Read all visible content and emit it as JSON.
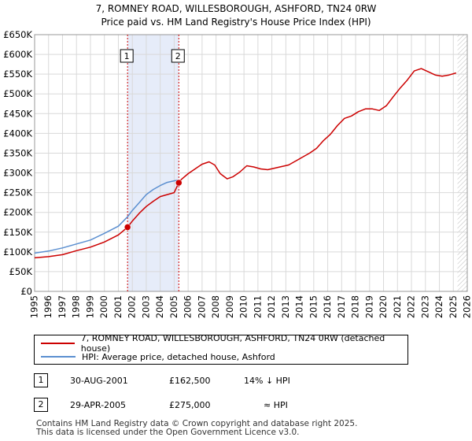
{
  "chart_data": {
    "type": "line",
    "title": "7, ROMNEY ROAD, WILLESBOROUGH, ASHFORD, TN24 0RW",
    "subtitle": "Price paid vs. HM Land Registry's House Price Index (HPI)",
    "xlabel": "",
    "ylabel": "",
    "xlim": [
      1995,
      2026
    ],
    "ylim": [
      0,
      650000
    ],
    "y_ticks": [
      0,
      50000,
      100000,
      150000,
      200000,
      250000,
      300000,
      350000,
      400000,
      450000,
      500000,
      550000,
      600000,
      650000
    ],
    "y_tick_labels": [
      "£0",
      "£50K",
      "£100K",
      "£150K",
      "£200K",
      "£250K",
      "£300K",
      "£350K",
      "£400K",
      "£450K",
      "£500K",
      "£550K",
      "£600K",
      "£650K"
    ],
    "x_ticks": [
      1995,
      1996,
      1997,
      1998,
      1999,
      2000,
      2001,
      2002,
      2003,
      2004,
      2005,
      2006,
      2007,
      2008,
      2009,
      2010,
      2011,
      2012,
      2013,
      2014,
      2015,
      2016,
      2017,
      2018,
      2019,
      2020,
      2021,
      2022,
      2023,
      2024,
      2025,
      2026
    ],
    "grid": true,
    "shaded_region": [
      2001.66,
      2005.33
    ],
    "forecast_start": 2025.3,
    "series": [
      {
        "name": "7, ROMNEY ROAD, WILLESBOROUGH, ASHFORD, TN24 0RW (detached house)",
        "color": "#cc0000",
        "x": [
          1995.0,
          1996.0,
          1997.0,
          1998.0,
          1999.0,
          2000.0,
          2001.0,
          2001.66,
          2002.0,
          2002.5,
          2003.0,
          2003.5,
          2004.0,
          2004.5,
          2005.0,
          2005.33,
          2005.5,
          2006.0,
          2006.5,
          2007.0,
          2007.5,
          2007.9,
          2008.3,
          2008.8,
          2009.2,
          2009.7,
          2010.2,
          2010.7,
          2011.2,
          2011.7,
          2012.2,
          2012.7,
          2013.2,
          2013.7,
          2014.2,
          2014.7,
          2015.2,
          2015.7,
          2016.2,
          2016.7,
          2017.2,
          2017.7,
          2018.2,
          2018.7,
          2019.2,
          2019.7,
          2020.2,
          2020.7,
          2021.2,
          2021.7,
          2022.2,
          2022.7,
          2023.2,
          2023.7,
          2024.2,
          2024.7,
          2025.2
        ],
        "values": [
          85000,
          88000,
          93000,
          103000,
          112000,
          125000,
          143000,
          162500,
          178000,
          198000,
          215000,
          228000,
          240000,
          245000,
          250000,
          275000,
          283000,
          298000,
          310000,
          322000,
          328000,
          320000,
          298000,
          285000,
          290000,
          302000,
          318000,
          315000,
          310000,
          308000,
          312000,
          316000,
          320000,
          330000,
          340000,
          350000,
          362000,
          382000,
          398000,
          420000,
          438000,
          444000,
          455000,
          462000,
          462000,
          458000,
          470000,
          493000,
          515000,
          535000,
          558000,
          564000,
          556000,
          548000,
          545000,
          548000,
          553000
        ]
      },
      {
        "name": "HPI: Average price, detached house, Ashford",
        "color": "#5b8fd0",
        "x": [
          1995.0,
          1996.0,
          1997.0,
          1998.0,
          1999.0,
          2000.0,
          2001.0,
          2001.66,
          2002.0,
          2002.5,
          2003.0,
          2003.5,
          2004.0,
          2004.5,
          2005.0,
          2005.33
        ],
        "values": [
          97000,
          102000,
          110000,
          120000,
          130000,
          147000,
          165000,
          189000,
          205000,
          225000,
          245000,
          258000,
          268000,
          276000,
          280000,
          282000
        ]
      }
    ],
    "sales": [
      {
        "label": "1",
        "x": 2001.66,
        "value": 162500
      },
      {
        "label": "2",
        "x": 2005.33,
        "value": 275000
      }
    ]
  },
  "legend": {
    "property_label": "7, ROMNEY ROAD, WILLESBOROUGH, ASHFORD, TN24 0RW (detached house)",
    "hpi_label": "HPI: Average price, detached house, Ashford"
  },
  "sales_table": [
    {
      "num": "1",
      "date": "30-AUG-2001",
      "price": "£162,500",
      "hpi": "14% ↓ HPI"
    },
    {
      "num": "2",
      "date": "29-APR-2005",
      "price": "£275,000",
      "hpi": "≈ HPI"
    }
  ],
  "footer": {
    "line1": "Contains HM Land Registry data © Crown copyright and database right 2025.",
    "line2": "This data is licensed under the Open Government Licence v3.0."
  }
}
